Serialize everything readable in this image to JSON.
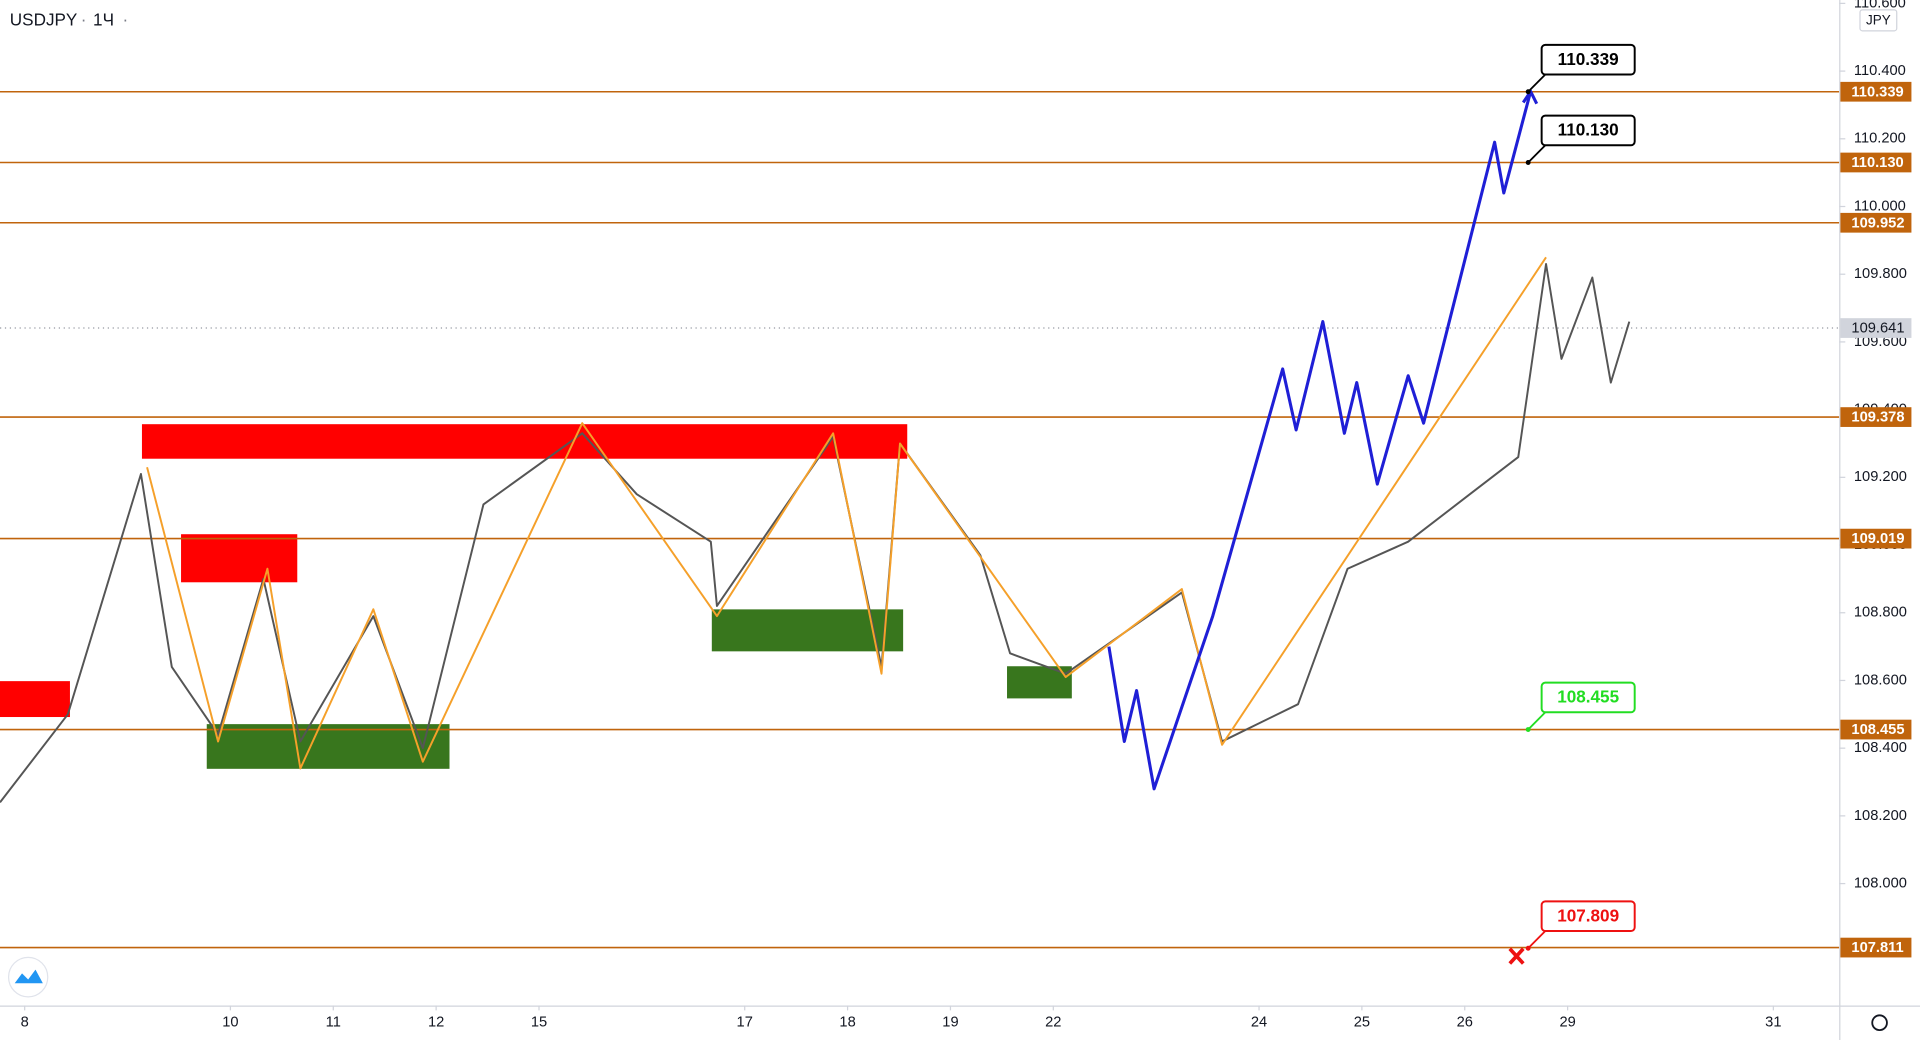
{
  "header": {
    "symbol": "USDJPY",
    "interval": "1Ч",
    "currency": "JPY"
  },
  "chart_data": {
    "type": "line",
    "xlim": [
      -0.24,
      17.64
    ],
    "ylim": [
      107.64,
      110.61
    ],
    "xticks": [
      {
        "value": 0,
        "label": "8"
      },
      {
        "value": 2,
        "label": "10"
      },
      {
        "value": 3,
        "label": "11"
      },
      {
        "value": 4,
        "label": "12"
      },
      {
        "value": 5,
        "label": "15"
      },
      {
        "value": 7,
        "label": "17"
      },
      {
        "value": 8,
        "label": "18"
      },
      {
        "value": 9,
        "label": "19"
      },
      {
        "value": 10,
        "label": "22"
      },
      {
        "value": 12,
        "label": "24"
      },
      {
        "value": 13,
        "label": "25"
      },
      {
        "value": 14,
        "label": "26"
      },
      {
        "value": 15,
        "label": "29"
      },
      {
        "value": 17,
        "label": "31"
      }
    ],
    "yticks": [
      {
        "value": 108,
        "label": "108.000"
      },
      {
        "value": 108.2,
        "label": "108.200"
      },
      {
        "value": 108.4,
        "label": "108.400"
      },
      {
        "value": 108.6,
        "label": "108.600"
      },
      {
        "value": 108.8,
        "label": "108.800"
      },
      {
        "value": 109,
        "label": "109.000"
      },
      {
        "value": 109.2,
        "label": "109.200"
      },
      {
        "value": 109.4,
        "label": "109.400"
      },
      {
        "value": 109.6,
        "label": "109.600"
      },
      {
        "value": 109.8,
        "label": "109.800"
      },
      {
        "value": 110,
        "label": "110.000"
      },
      {
        "value": 110.2,
        "label": "110.200"
      },
      {
        "value": 110.4,
        "label": "110.400"
      },
      {
        "value": 110.6,
        "label": "110.600"
      }
    ],
    "series": [
      {
        "color": "#555555",
        "x": [
          -0.24,
          0.42,
          1.13,
          1.43,
          1.88,
          2.32,
          2.68,
          3.39,
          3.87,
          4.46,
          5.42,
          5.95,
          6.67,
          6.73,
          7.86,
          8.33,
          8.51,
          9.29,
          9.58,
          10.12,
          11.25,
          11.64,
          12.38,
          12.86,
          13.45,
          14.05,
          14.52,
          14.79,
          14.94,
          15.24,
          15.42,
          15.6
        ],
        "values": [
          108.24,
          108.5,
          109.21,
          108.64,
          108.44,
          108.9,
          108.42,
          108.79,
          108.4,
          109.12,
          109.33,
          109.15,
          109.01,
          108.82,
          109.32,
          108.64,
          109.3,
          108.97,
          108.68,
          108.62,
          108.86,
          108.42,
          108.53,
          108.93,
          109.01,
          109.15,
          109.26,
          109.83,
          109.55,
          109.79,
          109.48,
          109.66
        ]
      },
      {
        "color": "#f5a02a",
        "x": [
          1.19,
          1.88,
          2.36,
          2.68,
          3.39,
          3.87,
          5.42,
          6.73,
          7.86,
          8.33,
          8.51,
          10.12,
          11.25,
          11.64,
          14.79
        ],
        "values": [
          109.23,
          108.42,
          108.93,
          108.34,
          108.81,
          108.36,
          109.36,
          108.79,
          109.33,
          108.62,
          109.3,
          108.61,
          108.87,
          108.41,
          109.85
        ]
      },
      {
        "color": "#1f1fd6",
        "x": [
          10.54,
          10.69,
          10.81,
          10.98,
          11.55,
          12.23,
          12.36,
          12.62,
          12.83,
          12.95,
          13.15,
          13.45,
          13.6,
          14.29,
          14.38,
          14.64
        ],
        "values": [
          108.7,
          108.42,
          108.57,
          108.28,
          108.79,
          109.52,
          109.34,
          109.66,
          109.33,
          109.48,
          109.18,
          109.5,
          109.36,
          110.19,
          110.04,
          110.34
        ]
      }
    ],
    "zones": [
      {
        "color": "#ff0000",
        "x": [
          1.14,
          8.58
        ],
        "y": [
          109.255,
          109.357
        ]
      },
      {
        "color": "#ff0000",
        "x": [
          1.52,
          2.65
        ],
        "y": [
          108.89,
          109.032
        ]
      },
      {
        "color": "#ff0000",
        "x": [
          -0.24,
          0.44
        ],
        "y": [
          108.492,
          108.598
        ]
      },
      {
        "color": "#38761d",
        "x": [
          1.77,
          4.13
        ],
        "y": [
          108.339,
          108.471
        ]
      },
      {
        "color": "#38761d",
        "x": [
          6.68,
          8.54
        ],
        "y": [
          108.686,
          108.81
        ]
      },
      {
        "color": "#38761d",
        "x": [
          9.55,
          10.18
        ],
        "y": [
          108.547,
          108.642
        ]
      }
    ],
    "levels": {
      "color": "#c0640c",
      "values": [
        110.339,
        110.13,
        109.952,
        109.378,
        109.019,
        108.455,
        107.811
      ],
      "value_labels": [
        "110.339",
        "110.130",
        "109.952",
        "109.378",
        "109.019",
        "108.455",
        "107.811"
      ]
    },
    "last_price": {
      "value": 109.641,
      "color": "#9598a1"
    },
    "callouts": [
      {
        "value": 110.339,
        "label": "110.339",
        "color": "#000000"
      },
      {
        "value": 110.13,
        "label": "110.130",
        "color": "#000000"
      },
      {
        "value": 108.455,
        "label": "108.455",
        "color": "#22dd22"
      },
      {
        "value": 107.809,
        "label": "107.809",
        "color": "#ee1111"
      }
    ]
  }
}
